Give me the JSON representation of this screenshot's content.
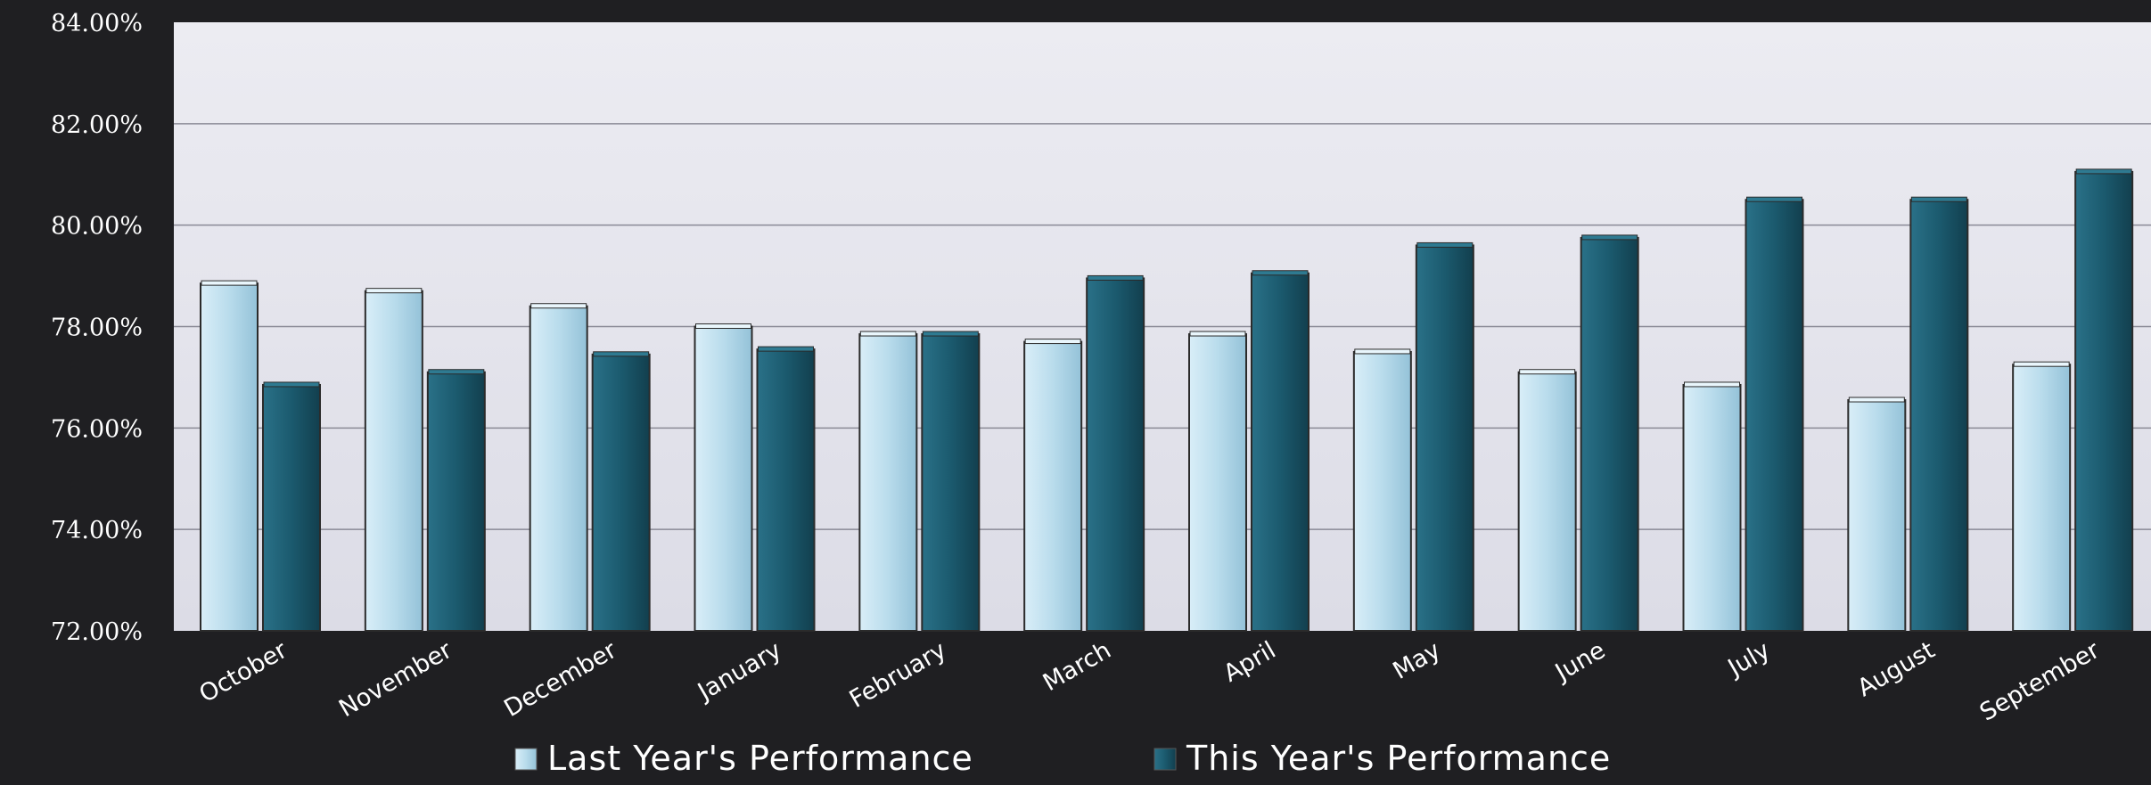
{
  "chart_data": {
    "type": "bar",
    "categories": [
      "October",
      "November",
      "December",
      "January",
      "February",
      "March",
      "April",
      "May",
      "June",
      "July",
      "August",
      "September"
    ],
    "series": [
      {
        "name": "Last Year's Performance",
        "color": "#b9dcec",
        "values": [
          78.85,
          78.7,
          78.4,
          78.0,
          77.85,
          77.7,
          77.85,
          77.5,
          77.1,
          76.85,
          76.55,
          77.25
        ]
      },
      {
        "name": "This Year's Performance",
        "color": "#1b5a6e",
        "values": [
          76.85,
          77.1,
          77.45,
          77.55,
          77.85,
          78.95,
          79.05,
          79.6,
          79.75,
          80.5,
          80.5,
          81.05
        ]
      }
    ],
    "ylim": [
      72,
      84
    ],
    "yticks": [
      "72.00%",
      "74.00%",
      "76.00%",
      "78.00%",
      "80.00%",
      "82.00%",
      "84.00%"
    ],
    "ytick_values": [
      72,
      74,
      76,
      78,
      80,
      82,
      84
    ],
    "grid": true,
    "legend_position": "bottom",
    "title": "",
    "xlabel": "",
    "ylabel": ""
  }
}
